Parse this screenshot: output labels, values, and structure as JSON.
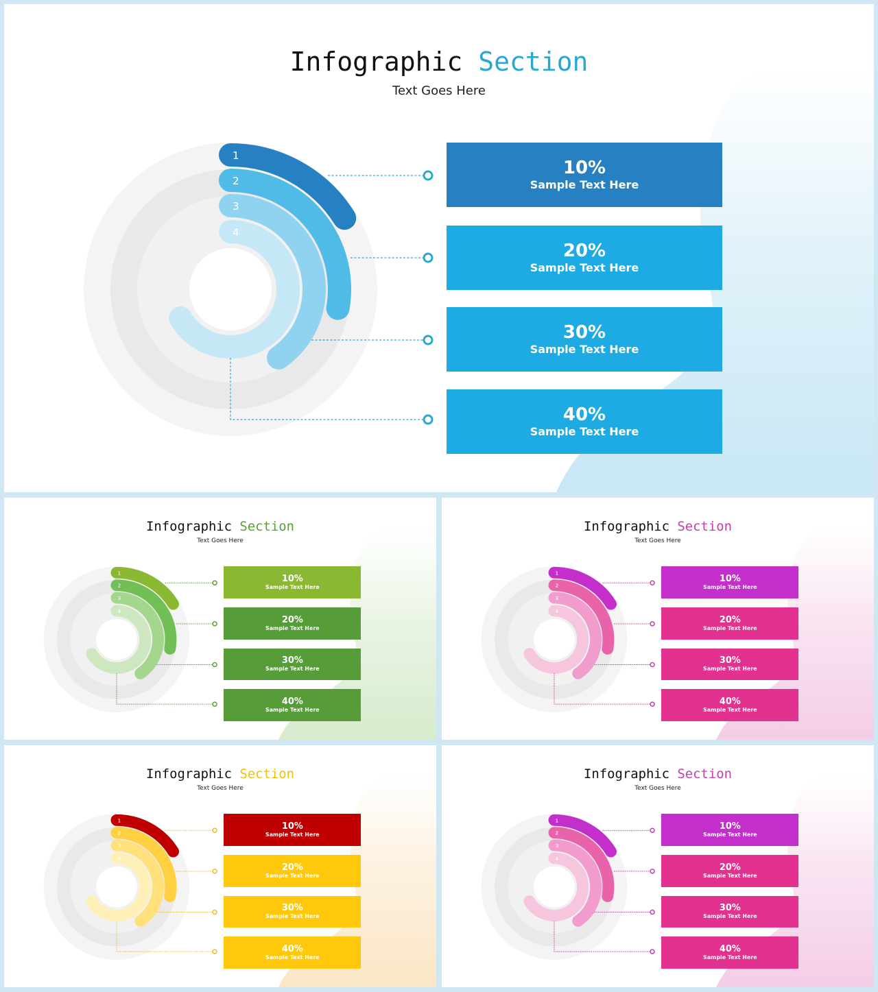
{
  "slides": [
    {
      "theme": "blue",
      "title_word1": "Infographic",
      "title_word2": "Section",
      "subtitle": "Text Goes Here",
      "accent": "#2aa8d2",
      "blob": "#c8e7f5",
      "ring_colors": [
        "#2680c2",
        "#4fbbe6",
        "#8fd3f0",
        "#c6e7f6"
      ],
      "box_colors": [
        "#2680c2",
        "#1eaae2",
        "#1eaae2",
        "#1eaae2"
      ],
      "connector": "#2aa8d2",
      "items": [
        {
          "num": "1",
          "value": "10%",
          "label": "Sample Text Here"
        },
        {
          "num": "2",
          "value": "20%",
          "label": "Sample Text Here"
        },
        {
          "num": "3",
          "value": "30%",
          "label": "Sample Text Here"
        },
        {
          "num": "4",
          "value": "40%",
          "label": "Sample Text Here"
        }
      ]
    },
    {
      "theme": "green",
      "title_word1": "Infographic",
      "title_word2": "Section",
      "subtitle": "Text Goes Here",
      "accent": "#5a9e3a",
      "blob": "#d8ebcd",
      "ring_colors": [
        "#8ab833",
        "#72bf55",
        "#a4d68e",
        "#cde8c0"
      ],
      "box_colors": [
        "#8ab833",
        "#569d3a",
        "#569d3a",
        "#569d3a"
      ],
      "connector": "#5a9e3a",
      "items": [
        {
          "num": "1",
          "value": "10%",
          "label": "Sample Text Here"
        },
        {
          "num": "2",
          "value": "20%",
          "label": "Sample Text Here"
        },
        {
          "num": "3",
          "value": "30%",
          "label": "Sample Text Here"
        },
        {
          "num": "4",
          "value": "40%",
          "label": "Sample Text Here"
        }
      ]
    },
    {
      "theme": "pink",
      "title_word1": "Infographic",
      "title_word2": "Section",
      "subtitle": "Text Goes Here",
      "accent": "#c53fa9",
      "blob": "#f4cde6",
      "ring_colors": [
        "#c42fcb",
        "#e963ab",
        "#f19ccc",
        "#f6c6df"
      ],
      "box_colors": [
        "#c42fcb",
        "#e3318f",
        "#e3318f",
        "#e3318f"
      ],
      "connector": "#c53fa9",
      "items": [
        {
          "num": "1",
          "value": "10%",
          "label": "Sample Text Here"
        },
        {
          "num": "2",
          "value": "20%",
          "label": "Sample Text Here"
        },
        {
          "num": "3",
          "value": "30%",
          "label": "Sample Text Here"
        },
        {
          "num": "4",
          "value": "40%",
          "label": "Sample Text Here"
        }
      ]
    },
    {
      "theme": "yellow",
      "title_word1": "Infographic",
      "title_word2": "Section",
      "subtitle": "Text Goes Here",
      "accent": "#f2c200",
      "blob": "#fbe6c6",
      "ring_colors": [
        "#c00000",
        "#ffd040",
        "#ffe07a",
        "#fff0b8"
      ],
      "box_colors": [
        "#c00000",
        "#ffc80a",
        "#ffc80a",
        "#ffc80a"
      ],
      "connector": "#e8c02a",
      "items": [
        {
          "num": "1",
          "value": "10%",
          "label": "Sample Text Here"
        },
        {
          "num": "2",
          "value": "20%",
          "label": "Sample Text Here"
        },
        {
          "num": "3",
          "value": "30%",
          "label": "Sample Text Here"
        },
        {
          "num": "4",
          "value": "40%",
          "label": "Sample Text Here"
        }
      ]
    },
    {
      "theme": "pink",
      "title_word1": "Infographic",
      "title_word2": "Section",
      "subtitle": "Text Goes Here",
      "accent": "#c53fa9",
      "blob": "#f4cde6",
      "ring_colors": [
        "#c42fcb",
        "#e963ab",
        "#f19ccc",
        "#f6c6df"
      ],
      "box_colors": [
        "#c42fcb",
        "#e3318f",
        "#e3318f",
        "#e3318f"
      ],
      "connector": "#c53fa9",
      "items": [
        {
          "num": "1",
          "value": "10%",
          "label": "Sample Text Here"
        },
        {
          "num": "2",
          "value": "20%",
          "label": "Sample Text Here"
        },
        {
          "num": "3",
          "value": "30%",
          "label": "Sample Text Here"
        },
        {
          "num": "4",
          "value": "40%",
          "label": "Sample Text Here"
        }
      ]
    }
  ]
}
